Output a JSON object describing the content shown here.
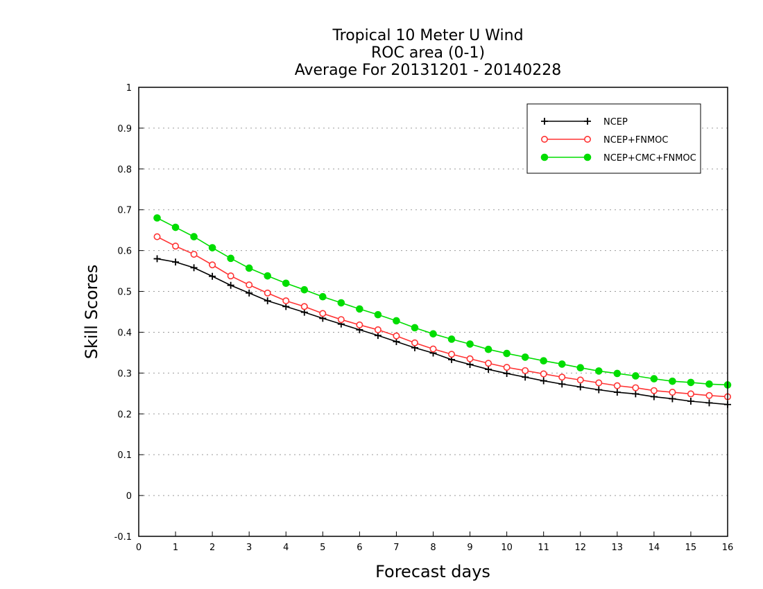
{
  "chart_data": {
    "type": "line",
    "title_lines": [
      "Tropical 10 Meter U Wind",
      "ROC area (0-1)",
      "Average For 20131201 - 20140228"
    ],
    "xlabel": "Forecast days",
    "ylabel": "Skill Scores",
    "xlim": [
      0,
      16
    ],
    "ylim": [
      -0.1,
      1
    ],
    "x_ticks": [
      0,
      1,
      2,
      3,
      4,
      5,
      6,
      7,
      8,
      9,
      10,
      11,
      12,
      13,
      14,
      15,
      16
    ],
    "x_tick_labels": [
      "0",
      "1",
      "2",
      "3",
      "4",
      "5",
      "6",
      "7",
      "8",
      "9",
      "10",
      "11",
      "12",
      "13",
      "14",
      "15",
      "16"
    ],
    "y_ticks": [
      -0.1,
      0,
      0.1,
      0.2,
      0.3,
      0.4,
      0.5,
      0.6,
      0.7,
      0.8,
      0.9,
      1
    ],
    "y_tick_labels": [
      "-0.1",
      "0",
      "0.1",
      "0.2",
      "0.3",
      "0.4",
      "0.5",
      "0.6",
      "0.7",
      "0.8",
      "0.9",
      "1"
    ],
    "grid": "horizontal dotted",
    "legend_position": "top-right",
    "x": [
      0.5,
      1,
      1.5,
      2,
      2.5,
      3,
      3.5,
      4,
      4.5,
      5,
      5.5,
      6,
      6.5,
      7,
      7.5,
      8,
      8.5,
      9,
      9.5,
      10,
      10.5,
      11,
      11.5,
      12,
      12.5,
      13,
      13.5,
      14,
      14.5,
      15,
      15.5,
      16
    ],
    "series": [
      {
        "name": "NCEP",
        "color": "#000000",
        "marker": "plus",
        "values": [
          0.58,
          0.572,
          0.558,
          0.537,
          0.515,
          0.496,
          0.477,
          0.463,
          0.449,
          0.434,
          0.42,
          0.406,
          0.392,
          0.377,
          0.362,
          0.349,
          0.333,
          0.321,
          0.309,
          0.299,
          0.29,
          0.281,
          0.273,
          0.266,
          0.259,
          0.253,
          0.249,
          0.242,
          0.237,
          0.231,
          0.227,
          0.223
        ]
      },
      {
        "name": "NCEP+FNMOC",
        "color": "#ff3333",
        "marker": "open-circle",
        "values": [
          0.634,
          0.611,
          0.591,
          0.565,
          0.538,
          0.516,
          0.496,
          0.477,
          0.463,
          0.446,
          0.431,
          0.418,
          0.406,
          0.391,
          0.374,
          0.359,
          0.346,
          0.335,
          0.324,
          0.314,
          0.306,
          0.298,
          0.29,
          0.283,
          0.276,
          0.269,
          0.264,
          0.257,
          0.253,
          0.249,
          0.245,
          0.242
        ]
      },
      {
        "name": "NCEP+CMC+FNMOC",
        "color": "#00dd00",
        "marker": "filled-circle",
        "values": [
          0.68,
          0.657,
          0.634,
          0.607,
          0.581,
          0.557,
          0.538,
          0.52,
          0.504,
          0.487,
          0.472,
          0.457,
          0.443,
          0.428,
          0.411,
          0.396,
          0.383,
          0.371,
          0.358,
          0.348,
          0.339,
          0.33,
          0.322,
          0.313,
          0.305,
          0.299,
          0.293,
          0.286,
          0.28,
          0.277,
          0.273,
          0.271
        ]
      }
    ]
  }
}
